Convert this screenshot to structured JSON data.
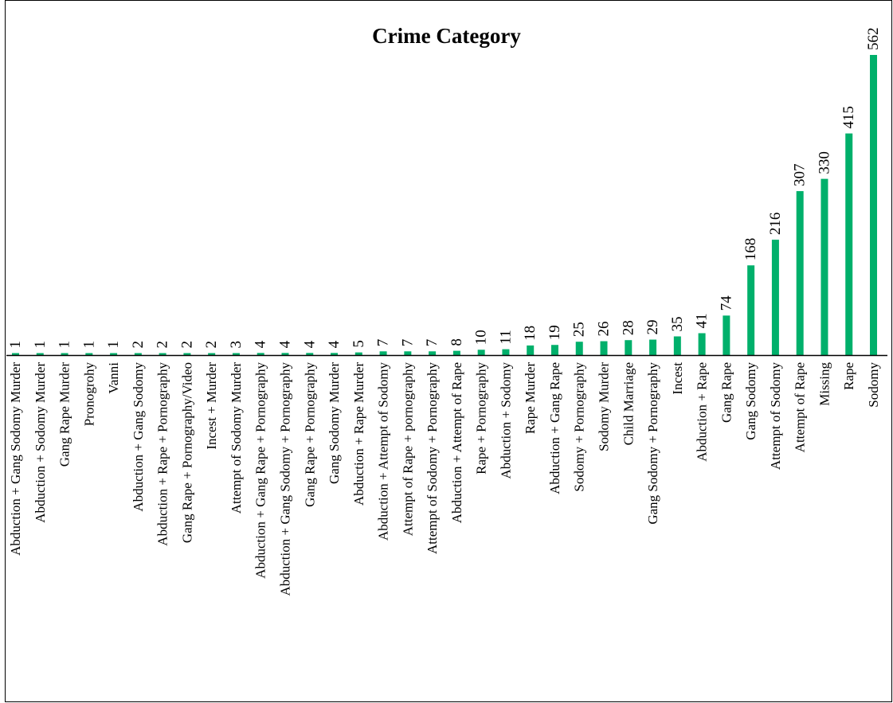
{
  "chart_data": {
    "type": "bar",
    "title": "Crime Category",
    "xlabel": "",
    "ylabel": "",
    "ylim": [
      0,
      562
    ],
    "grid": false,
    "legend": "none",
    "bar_color": "#00b06b",
    "categories": [
      "Abduction + Gang Sodomy Murder",
      "Abduction + Sodomy Murder",
      "Gang Rape Murder",
      "Pronogrohy",
      "Vanni",
      "Abduction + Gang Sodomy",
      "Abduction + Rape + Pornography",
      "Gang Rape + Pornography/Video",
      "Incest + Murder",
      "Attempt of Sodomy Murder",
      "Abduction + Gang Rape + Pornography",
      "Abduction + Gang Sodomy + Pornography",
      "Gang Rape + Pornography",
      "Gang Sodomy Murder",
      "Abduction + Rape Murder",
      "Abduction + Attempt of Sodomy",
      "Attempt of Rape + pornography",
      "Attempt of Sodomy + Pornography",
      "Abduction + Attempt of Rape",
      "Rape + Pornography",
      "Abduction + Sodomy",
      "Rape Murder",
      "Abduction + Gang Rape",
      "Sodomy + Pornography",
      "Sodomy Murder",
      "Child Marriage",
      "Gang Sodomy + Pornography",
      "Incest",
      "Abduction + Rape",
      "Gang Rape",
      "Gang Sodomy",
      "Attempt of Sodomy",
      "Attempt of Rape",
      "Missing",
      "Rape",
      "Sodomy"
    ],
    "values": [
      1,
      1,
      1,
      1,
      1,
      2,
      2,
      2,
      2,
      3,
      4,
      4,
      4,
      4,
      5,
      7,
      7,
      7,
      8,
      10,
      11,
      18,
      19,
      25,
      26,
      28,
      29,
      35,
      41,
      74,
      168,
      216,
      307,
      330,
      415,
      562
    ]
  }
}
